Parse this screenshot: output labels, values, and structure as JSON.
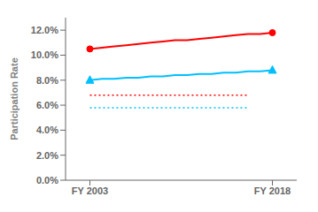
{
  "chart_data": {
    "type": "line",
    "x": [
      2003,
      2004,
      2005,
      2006,
      2007,
      2008,
      2009,
      2010,
      2011,
      2012,
      2013,
      2014,
      2015,
      2016,
      2017,
      2018
    ],
    "xlim": [
      2001,
      2020
    ],
    "ylim": [
      0.0,
      0.13
    ],
    "xticks": [
      {
        "value": 2003,
        "label": "FY 2003"
      },
      {
        "value": 2018,
        "label": "FY 2018"
      }
    ],
    "yticks": [
      {
        "value": 0.0,
        "label": "0.0%"
      },
      {
        "value": 0.02,
        "label": "2.0%"
      },
      {
        "value": 0.04,
        "label": "4.0%"
      },
      {
        "value": 0.06,
        "label": "6.0%"
      },
      {
        "value": 0.08,
        "label": "8.0%"
      },
      {
        "value": 0.1,
        "label": "10.0%"
      },
      {
        "value": 0.12,
        "label": "12.0%"
      }
    ],
    "ylabel": "Participation Rate",
    "grid": false,
    "series": [
      {
        "color": "#FF0000",
        "marker": "circle",
        "line_style": "solid",
        "values": [
          0.105,
          0.106,
          0.107,
          0.108,
          0.109,
          0.11,
          0.111,
          0.112,
          0.112,
          0.113,
          0.114,
          0.115,
          0.116,
          0.117,
          0.117,
          0.118
        ]
      },
      {
        "color": "#00BFFF",
        "marker": "triangle",
        "line_style": "solid",
        "values": [
          0.08,
          0.081,
          0.081,
          0.082,
          0.082,
          0.083,
          0.083,
          0.084,
          0.084,
          0.085,
          0.085,
          0.086,
          0.086,
          0.087,
          0.087,
          0.088
        ]
      },
      {
        "color": "#FF0000",
        "marker": "none",
        "line_style": "dotted",
        "x": [
          2003,
          2016
        ],
        "values": [
          0.068,
          0.068
        ]
      },
      {
        "color": "#00BFFF",
        "marker": "none",
        "line_style": "dotted",
        "x": [
          2003,
          2016
        ],
        "values": [
          0.058,
          0.058
        ]
      }
    ]
  }
}
